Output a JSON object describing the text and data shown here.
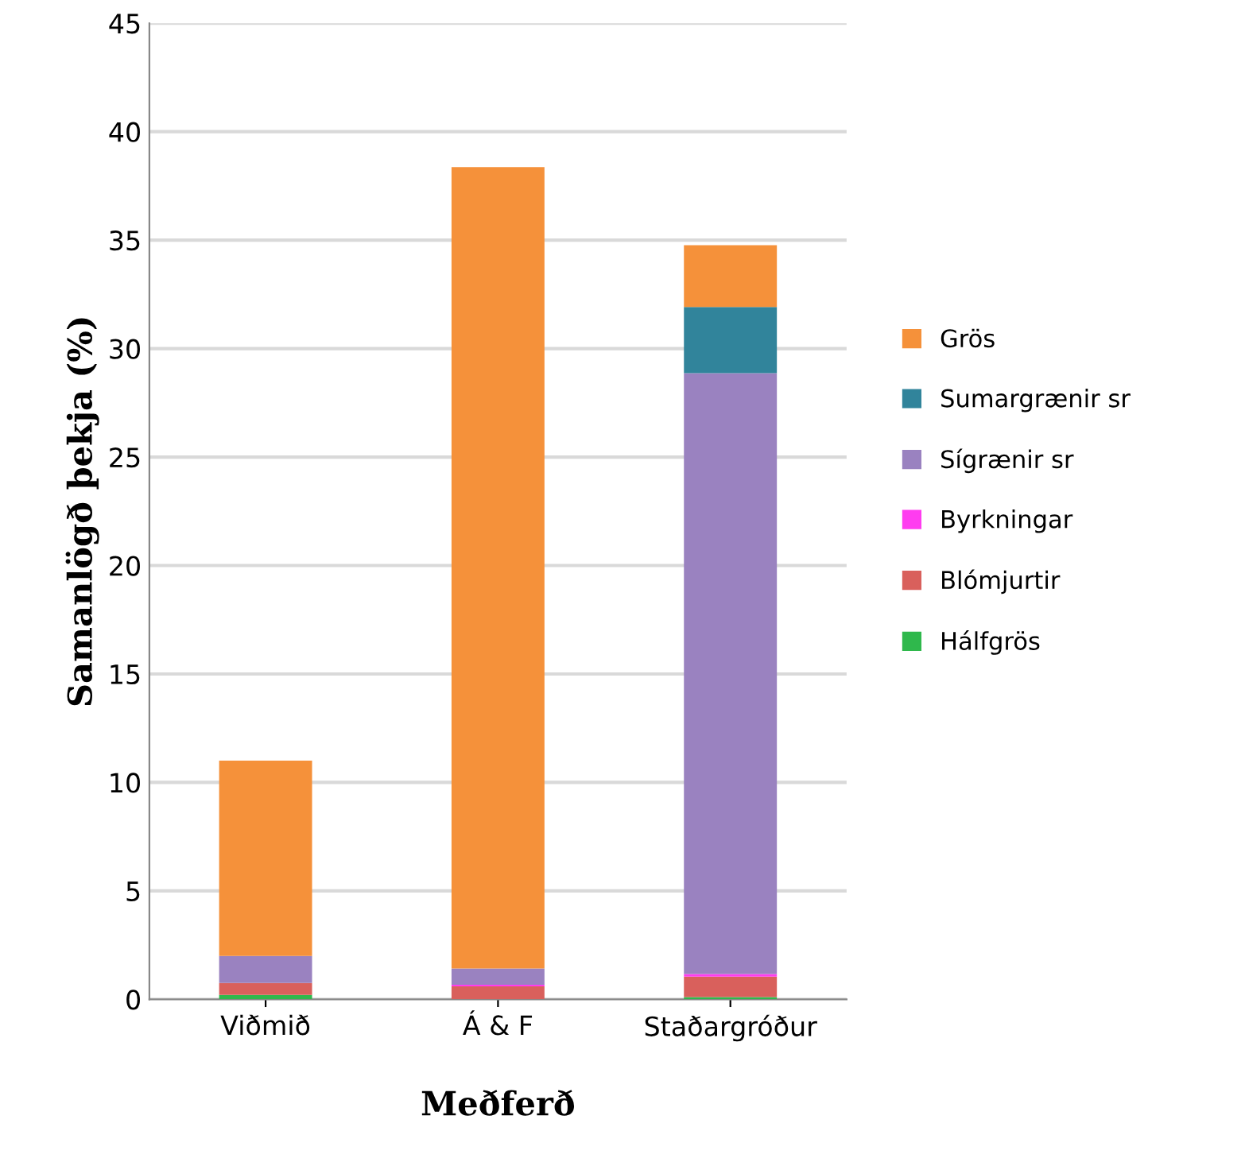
{
  "chart_data": {
    "type": "bar",
    "stacked": true,
    "xlabel": "Meðferð",
    "ylabel": "Samanlögð þekja (%)",
    "categories": [
      "Viðmið",
      "Á & F",
      "Staðargróður"
    ],
    "series": [
      {
        "name": "Hálfgrös",
        "color": "#2fb84c",
        "values": [
          0.2,
          0,
          0.1
        ]
      },
      {
        "name": "Blómjurtir",
        "color": "#d9605c",
        "values": [
          0.55,
          0.6,
          0.95
        ]
      },
      {
        "name": "Byrkningar",
        "color": "#ff3cf0",
        "values": [
          0,
          0.07,
          0.12
        ]
      },
      {
        "name": "Sígrænir sr",
        "color": "#9a82c0",
        "values": [
          1.25,
          0.75,
          27.7
        ]
      },
      {
        "name": "Sumargrænir sr",
        "color": "#31849b",
        "values": [
          0,
          0,
          3.05
        ]
      },
      {
        "name": "Grös",
        "color": "#f5913a",
        "values": [
          9.0,
          36.95,
          2.85
        ]
      }
    ],
    "ylim": [
      0,
      45
    ],
    "yticks": [
      0,
      5,
      10,
      15,
      20,
      25,
      30,
      35,
      40,
      45
    ],
    "grid": "y",
    "legend": "right"
  }
}
